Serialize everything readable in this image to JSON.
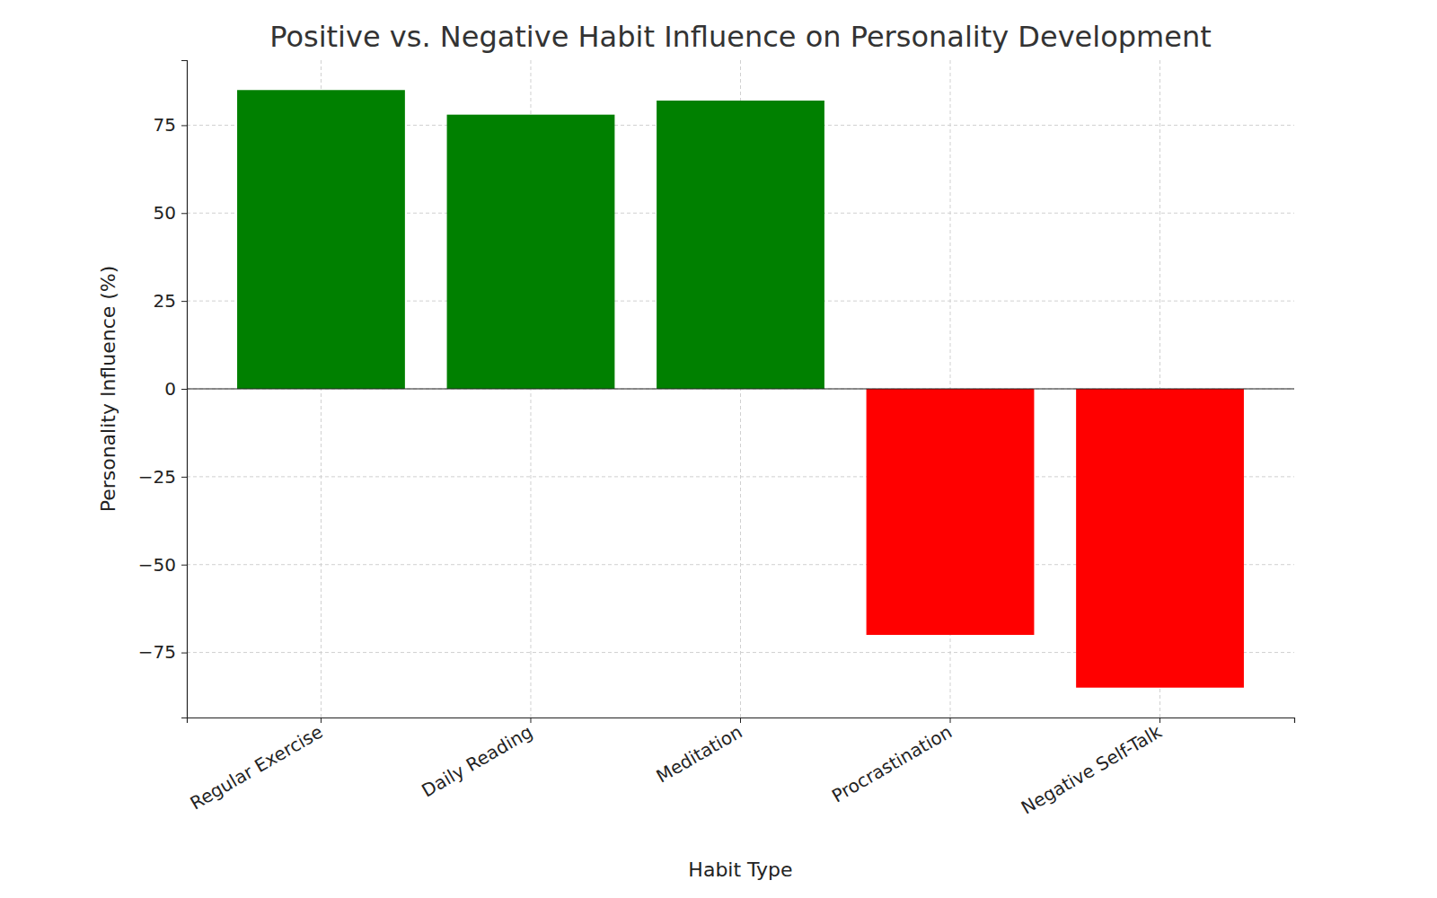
{
  "chart_data": {
    "type": "bar",
    "title": "Positive vs. Negative Habit Influence on Personality Development",
    "x_label": "Habit Type",
    "y_label": "Personality Influence (%)",
    "categories": [
      "Regular Exercise",
      "Daily Reading",
      "Meditation",
      "Procrastination",
      "Negative Self-Talk"
    ],
    "values": [
      85,
      78,
      82,
      -70,
      -85
    ],
    "colors": [
      "#008000",
      "#008000",
      "#008000",
      "#ff0000",
      "#ff0000"
    ],
    "ylim": [
      -93.5,
      93.5
    ],
    "yticks": [
      {
        "value": -75,
        "label": "−75"
      },
      {
        "value": -50,
        "label": "−50"
      },
      {
        "value": -25,
        "label": "−25"
      },
      0,
      25,
      50,
      75
    ],
    "grid": true
  }
}
